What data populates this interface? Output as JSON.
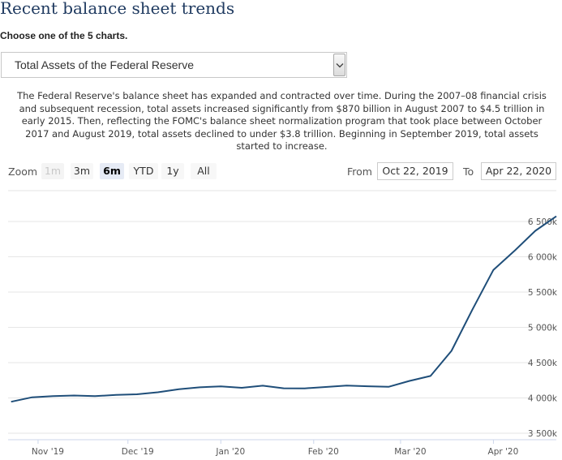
{
  "page": {
    "title": "Recent balance sheet trends",
    "choose_label": "Choose one of the 5 charts.",
    "selected_chart": "Total Assets of the Federal Reserve",
    "description": "The Federal Reserve's balance sheet has expanded and contracted over time. During the 2007–08 financial crisis and subsequent recession, total assets increased significantly from $870 billion in August 2007 to $4.5 trillion in early 2015. Then, reflecting the FOMC's balance sheet normalization program that took place between October 2017 and August 2019, total assets declined to under $3.8 trillion. Beginning in September 2019, total assets started to increase."
  },
  "toolbar": {
    "zoom_label": "Zoom",
    "zoom_options": [
      "1m",
      "3m",
      "6m",
      "YTD",
      "1y",
      "All"
    ],
    "active_zoom": "6m",
    "from_label": "From",
    "from_value": "Oct 22, 2019",
    "to_label": "To",
    "to_value": "Apr 22, 2020"
  },
  "chart_data": {
    "type": "line",
    "title": "",
    "xlabel": "",
    "ylabel": "",
    "x_ticks": [
      "Nov '19",
      "Dec '19",
      "Jan '20",
      "Feb '20",
      "Mar '20",
      "Apr '20"
    ],
    "y_ticks": [
      "3 500k",
      "4 000k",
      "4 500k",
      "5 000k",
      "5 500k",
      "6 000k",
      "6 500k"
    ],
    "ylim": [
      3500,
      6500
    ],
    "grid": true,
    "line_color": "#1f4e79",
    "series": [
      {
        "x": [
          "2019-10-23",
          "2019-10-30",
          "2019-11-06",
          "2019-11-13",
          "2019-11-20",
          "2019-11-27",
          "2019-12-04",
          "2019-12-11",
          "2019-12-18",
          "2019-12-25",
          "2020-01-01",
          "2020-01-08",
          "2020-01-15",
          "2020-01-22",
          "2020-01-29",
          "2020-02-05",
          "2020-02-12",
          "2020-02-19",
          "2020-02-26",
          "2020-03-04",
          "2020-03-11",
          "2020-03-18",
          "2020-03-25",
          "2020-04-01",
          "2020-04-08",
          "2020-04-15",
          "2020-04-22"
        ],
        "values": [
          3946,
          4009,
          4026,
          4035,
          4025,
          4042,
          4052,
          4080,
          4123,
          4151,
          4164,
          4144,
          4174,
          4137,
          4136,
          4155,
          4175,
          4165,
          4157,
          4241,
          4312,
          4667,
          5254,
          5814,
          6083,
          6368,
          6573
        ]
      }
    ]
  }
}
